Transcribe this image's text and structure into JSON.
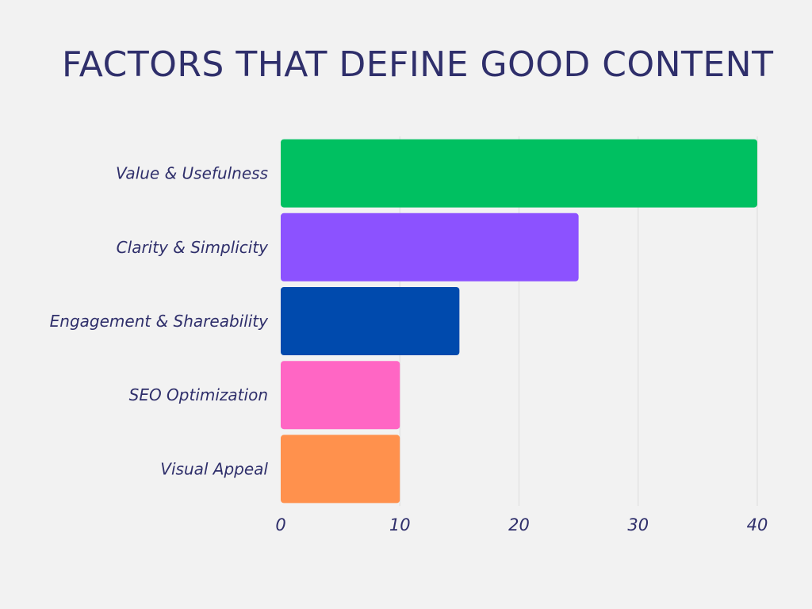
{
  "chart_data": {
    "type": "bar",
    "orientation": "horizontal",
    "title": "FACTORS THAT DEFINE GOOD CONTENT",
    "xlabel": "",
    "ylabel": "",
    "categories": [
      "Value & Usefulness",
      "Clarity & Simplicity",
      "Engagement & Shareability",
      "SEO Optimization",
      "Visual Appeal"
    ],
    "values": [
      40,
      25,
      15,
      10,
      10
    ],
    "colors": [
      "#00c061",
      "#8c52ff",
      "#004aad",
      "#ff66c4",
      "#ff914d"
    ],
    "xlim": [
      0,
      40
    ],
    "xticks": [
      0,
      10,
      20,
      30,
      40
    ],
    "grid": true,
    "legend": "none"
  },
  "colors": {
    "background": "#f2f2f2",
    "text": "#2f2f6b",
    "grid": "#dcdcdc"
  }
}
